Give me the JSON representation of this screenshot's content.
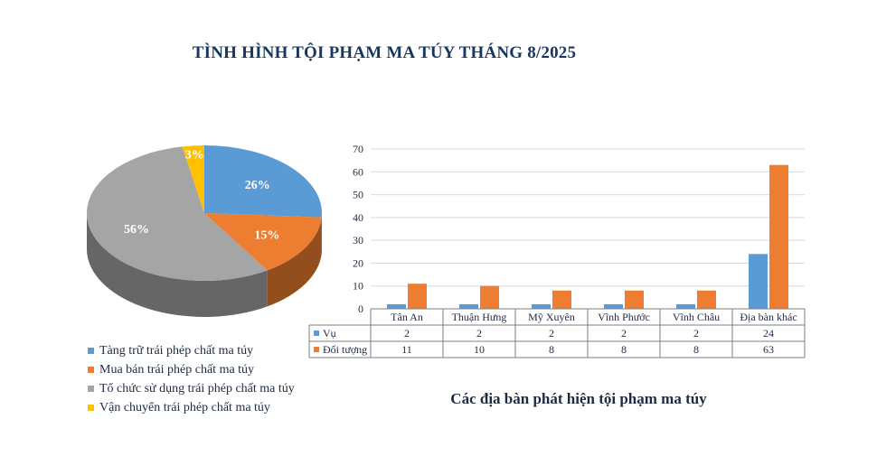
{
  "title": "TÌNH HÌNH TỘI PHẠM MA TÚY THÁNG 8/2025",
  "chart_data": [
    {
      "type": "pie",
      "categories": [
        "Tàng trữ trái phép chất ma túy",
        "Mua bán trái phép chất ma túy",
        "Tổ chức sử dụng trái phép chất ma túy",
        "Vận chuyển trái phép chất ma túy"
      ],
      "values": [
        26,
        15,
        56,
        3
      ],
      "labels": [
        "26%",
        "15%",
        "56%",
        "3%"
      ],
      "colors": [
        "#5B9BD5",
        "#ED7D31",
        "#A5A5A5",
        "#FFC000"
      ],
      "legend_position": "bottom-left",
      "style": "3d"
    },
    {
      "type": "bar",
      "title": "Các địa bàn phát hiện tội phạm ma túy",
      "categories": [
        "Tân An",
        "Thuận Hưng",
        "Mỹ Xuyên",
        "Vĩnh Phước",
        "Vĩnh Châu",
        "Địa bàn khác"
      ],
      "series": [
        {
          "name": "Vụ",
          "values": [
            2,
            2,
            2,
            2,
            2,
            24
          ],
          "color": "#5B9BD5"
        },
        {
          "name": "Đối tượng",
          "values": [
            11,
            10,
            8,
            8,
            8,
            63
          ],
          "color": "#ED7D31"
        }
      ],
      "ylim": [
        0,
        70
      ],
      "yticks": [
        0,
        10,
        20,
        30,
        40,
        50,
        60,
        70
      ],
      "grid": true,
      "data_table": true
    }
  ]
}
